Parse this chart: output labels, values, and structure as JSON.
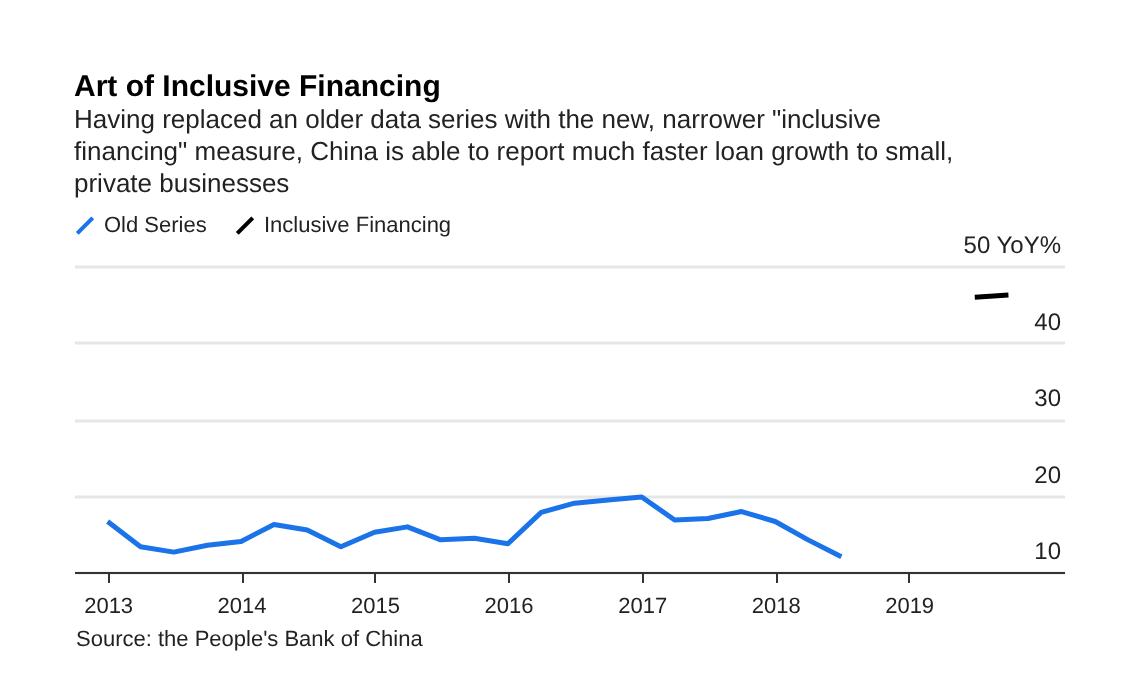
{
  "chart_data": {
    "type": "line",
    "title": "Art of Inclusive Financing",
    "subtitle": "Having replaced an older data series with the new, narrower \"inclusive financing\" measure, China is able to report much faster loan growth to small, private businesses",
    "annotations": [
      "Source: the People's Bank of China"
    ],
    "series": [
      {
        "name": "Old Series",
        "color": "#1a73e8",
        "x": [
          "2013-01",
          "2013-04",
          "2013-07",
          "2013-10",
          "2014-01",
          "2014-04",
          "2014-07",
          "2014-10",
          "2015-01",
          "2015-04",
          "2015-07",
          "2015-10",
          "2016-01",
          "2016-04",
          "2016-07",
          "2016-10",
          "2017-01",
          "2017-04",
          "2017-07",
          "2017-10",
          "2018-01",
          "2018-04",
          "2018-07"
        ],
        "values": [
          16.6,
          13.3,
          12.6,
          13.5,
          14.0,
          16.2,
          15.5,
          13.3,
          15.2,
          15.9,
          14.2,
          14.4,
          13.7,
          17.8,
          19.0,
          19.4,
          19.8,
          16.8,
          17.0,
          17.9,
          16.6,
          14.2,
          12.0
        ]
      },
      {
        "name": "Inclusive Financing",
        "color": "#000000",
        "x": [
          "2019-07",
          "2019-10"
        ],
        "values": [
          45.9,
          46.2
        ]
      }
    ],
    "xlim": [
      "2012-10",
      "2020-03"
    ],
    "xticks": [
      "2013",
      "2014",
      "2015",
      "2016",
      "2017",
      "2018",
      "2019"
    ],
    "ylim": [
      10,
      50
    ],
    "yticks": [
      10,
      20,
      30,
      40,
      {
        "value": 50,
        "label": "50 YoY%"
      }
    ],
    "grid": "y",
    "legend": "top"
  }
}
